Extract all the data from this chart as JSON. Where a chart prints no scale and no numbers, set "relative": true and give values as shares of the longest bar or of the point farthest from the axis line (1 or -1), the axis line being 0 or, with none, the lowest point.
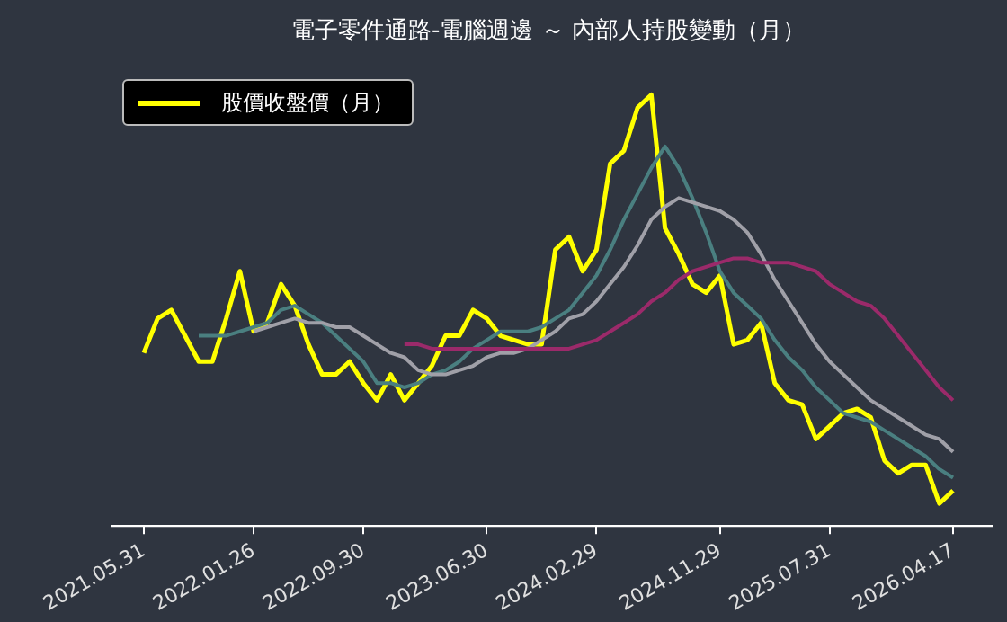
{
  "chart_data": {
    "type": "line",
    "title": "電子零件通路-電腦週邊 ～ 內部人持股變動（月）",
    "relative": true,
    "legend": "top left",
    "grid": false,
    "marker": "none",
    "line_style": "solid",
    "categories": [
      "2021.05.31",
      null,
      null,
      null,
      null,
      null,
      null,
      null,
      "2022.01.26",
      null,
      null,
      null,
      null,
      null,
      null,
      null,
      "2022.09.30",
      null,
      null,
      null,
      null,
      null,
      null,
      null,
      null,
      "2023.06.30",
      null,
      null,
      null,
      null,
      null,
      null,
      null,
      "2024.02.29",
      null,
      null,
      null,
      null,
      null,
      null,
      null,
      null,
      "2024.11.29",
      null,
      null,
      null,
      null,
      null,
      null,
      null,
      "2025.07.31",
      null,
      null,
      null,
      null,
      null,
      null,
      null,
      null,
      "2026.04.17"
    ],
    "series": [
      {
        "name": "股價收盤價（月）",
        "color": "#ffff00",
        "values": [
          0.4,
          0.48,
          0.5,
          0.44,
          0.38,
          0.38,
          0.48,
          0.59,
          0.45,
          0.47,
          0.56,
          0.51,
          0.42,
          0.35,
          0.35,
          0.38,
          0.33,
          0.29,
          0.35,
          0.29,
          0.33,
          0.37,
          0.44,
          0.44,
          0.5,
          0.48,
          0.44,
          0.43,
          0.42,
          0.42,
          0.64,
          0.67,
          0.59,
          0.64,
          0.84,
          0.87,
          0.97,
          1.0,
          0.69,
          0.63,
          0.56,
          0.54,
          0.58,
          0.42,
          0.43,
          0.47,
          0.33,
          0.29,
          0.28,
          0.2,
          0.23,
          0.26,
          0.27,
          0.25,
          0.15,
          0.12,
          0.14,
          0.14,
          0.05,
          0.08
        ]
      },
      {
        "color": "#4a7f80",
        "values": [
          null,
          null,
          null,
          null,
          0.44,
          0.44,
          0.44,
          0.45,
          0.46,
          0.47,
          0.5,
          0.51,
          0.49,
          0.47,
          0.44,
          0.41,
          0.38,
          0.33,
          0.33,
          0.32,
          0.33,
          0.35,
          0.36,
          0.38,
          0.41,
          0.43,
          0.45,
          0.45,
          0.45,
          0.46,
          0.48,
          0.5,
          0.54,
          0.58,
          0.64,
          0.71,
          0.77,
          0.83,
          0.88,
          0.83,
          0.76,
          0.68,
          0.59,
          0.54,
          0.51,
          0.48,
          0.43,
          0.39,
          0.36,
          0.32,
          0.29,
          0.26,
          0.25,
          0.24,
          0.22,
          0.2,
          0.18,
          0.16,
          0.13,
          0.11
        ]
      },
      {
        "color": "#a0a0a8",
        "values": [
          null,
          null,
          null,
          null,
          null,
          null,
          null,
          null,
          0.45,
          0.46,
          0.47,
          0.48,
          0.47,
          0.47,
          0.46,
          0.46,
          0.44,
          0.42,
          0.4,
          0.39,
          0.36,
          0.35,
          0.35,
          0.36,
          0.37,
          0.39,
          0.4,
          0.4,
          0.41,
          0.43,
          0.45,
          0.48,
          0.49,
          0.52,
          0.56,
          0.6,
          0.65,
          0.71,
          0.74,
          0.76,
          0.75,
          0.74,
          0.73,
          0.71,
          0.68,
          0.63,
          0.57,
          0.52,
          0.47,
          0.42,
          0.38,
          0.35,
          0.32,
          0.29,
          0.27,
          0.25,
          0.23,
          0.21,
          0.2,
          0.17
        ]
      },
      {
        "color": "#9b2a6a",
        "values": [
          null,
          null,
          null,
          null,
          null,
          null,
          null,
          null,
          null,
          null,
          null,
          null,
          null,
          null,
          null,
          null,
          null,
          null,
          null,
          0.42,
          0.42,
          0.41,
          0.41,
          0.41,
          0.41,
          0.41,
          0.41,
          0.41,
          0.41,
          0.41,
          0.41,
          0.41,
          0.42,
          0.43,
          0.45,
          0.47,
          0.49,
          0.52,
          0.54,
          0.57,
          0.59,
          0.6,
          0.61,
          0.62,
          0.62,
          0.61,
          0.61,
          0.61,
          0.6,
          0.59,
          0.56,
          0.54,
          0.52,
          0.51,
          0.48,
          0.44,
          0.4,
          0.36,
          0.32,
          0.29
        ]
      }
    ]
  }
}
